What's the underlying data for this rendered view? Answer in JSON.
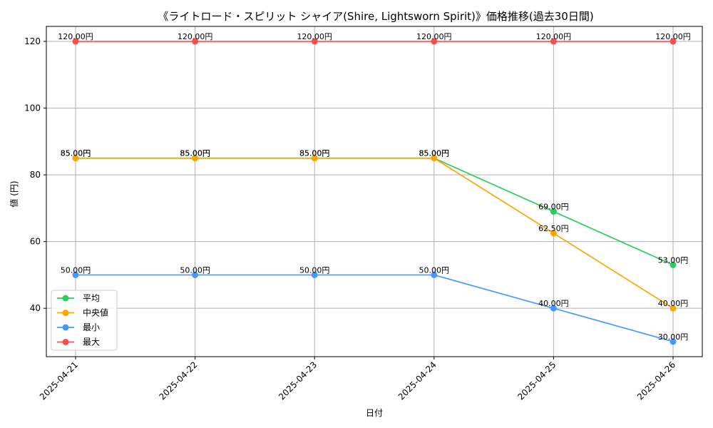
{
  "chart_data": {
    "type": "line",
    "title": "《ライトロード・スピリット シャイア(Shire, Lightsworn Spirit)》価格推移(過去30日間)",
    "xlabel": "日付",
    "ylabel": "値 (円)",
    "categories": [
      "2025-04-21",
      "2025-04-22",
      "2025-04-23",
      "2025-04-24",
      "2025-04-25",
      "2025-04-26"
    ],
    "ylim": [
      25.5,
      124.5
    ],
    "yticks": [
      40,
      60,
      80,
      100,
      120
    ],
    "grid": true,
    "legend_position": "lower-left",
    "value_suffix": "円",
    "series": [
      {
        "name": "平均",
        "color": "#2ecc5f",
        "values": [
          85,
          85,
          85,
          85,
          69,
          53
        ],
        "labels": [
          "85.00円",
          "85.00円",
          "85.00円",
          "85.00円",
          "69.00円",
          "53.00円"
        ]
      },
      {
        "name": "中央値",
        "color": "#ffa500",
        "values": [
          85,
          85,
          85,
          85,
          62.5,
          40
        ],
        "labels": [
          "85.00円",
          "85.00円",
          "85.00円",
          "85.00円",
          "62.50円",
          "40.00円"
        ]
      },
      {
        "name": "最小",
        "color": "#4499ff",
        "values": [
          50,
          50,
          50,
          50,
          40,
          30
        ],
        "labels": [
          "50.00円",
          "50.00円",
          "50.00円",
          "50.00円",
          "40.00円",
          "30.00円"
        ]
      },
      {
        "name": "最大",
        "color": "#ff4d4d",
        "values": [
          120,
          120,
          120,
          120,
          120,
          120
        ],
        "labels": [
          "120.00円",
          "120.00円",
          "120.00円",
          "120.00円",
          "120.00円",
          "120.00円"
        ]
      }
    ]
  }
}
